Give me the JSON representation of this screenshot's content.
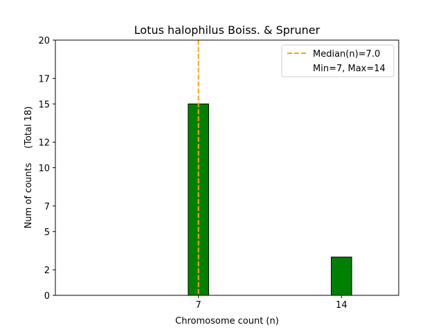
{
  "chart_data": {
    "type": "bar",
    "title": "Lotus halophilus Boiss. & Spruner",
    "xlabel": "Chromosome count (n)",
    "ylabel": "Num of counts     (Total 18)",
    "x": [
      7,
      14
    ],
    "values": [
      15,
      3
    ],
    "bar_width": 1,
    "bar_color": "#008000",
    "xlim": [
      0,
      16.8
    ],
    "ylim": [
      0,
      20
    ],
    "xticks": [
      7,
      14
    ],
    "yticks": [
      0,
      2,
      5,
      7,
      10,
      12,
      15,
      17,
      20
    ],
    "median": 7.0,
    "median_color": "#FFA500",
    "legend": {
      "position": "top-right",
      "entries": [
        "Median(n)=7.0",
        "Min=7, Max=14"
      ]
    },
    "grid": false
  }
}
